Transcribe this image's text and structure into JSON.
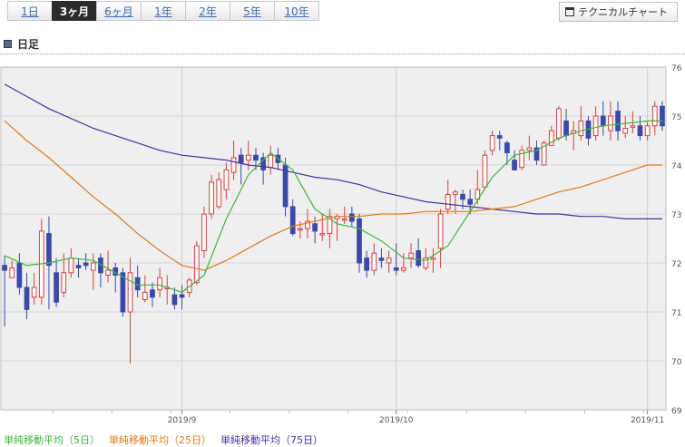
{
  "tabs": [
    {
      "label": "1日",
      "active": false
    },
    {
      "label": "3ヶ月",
      "active": true
    },
    {
      "label": "6ヶ月",
      "active": false
    },
    {
      "label": "1年",
      "active": false
    },
    {
      "label": "2年",
      "active": false
    },
    {
      "label": "5年",
      "active": false
    },
    {
      "label": "10年",
      "active": false
    }
  ],
  "tech_button": {
    "label": "テクニカルチャート",
    "icon": "window-icon"
  },
  "section": {
    "title": "日足",
    "icon": "square-icon"
  },
  "legend": [
    {
      "label": "単純移動平均（5日）",
      "color": "#3cb83c"
    },
    {
      "label": "単純移動平均（25日）",
      "color": "#e07a1c"
    },
    {
      "label": "単純移動平均（75日）",
      "color": "#4a2e9e"
    }
  ],
  "chart_data": {
    "type": "candlestick",
    "ylim": [
      69,
      76
    ],
    "yticks": [
      69,
      70,
      71,
      72,
      73,
      74,
      75,
      76
    ],
    "xticks": [
      {
        "index": 24,
        "label": "2019/9"
      },
      {
        "index": 53,
        "label": "2019/10"
      },
      {
        "index": 87,
        "label": "2019/11"
      }
    ],
    "up_color": "#d84040",
    "down_color": "#3a4aa8",
    "grid": true,
    "candles": [
      [
        71.95,
        71.85,
        72.15,
        70.7
      ],
      [
        71.7,
        71.9,
        72.05,
        71.7
      ],
      [
        72.0,
        71.5,
        72.2,
        71.35
      ],
      [
        71.5,
        71.05,
        71.8,
        70.85
      ],
      [
        71.3,
        71.5,
        71.8,
        71.15
      ],
      [
        71.3,
        72.65,
        72.9,
        71.15
      ],
      [
        72.6,
        71.95,
        72.95,
        71.05
      ],
      [
        71.8,
        71.2,
        72.1,
        71.1
      ],
      [
        71.4,
        71.8,
        72.2,
        71.3
      ],
      [
        71.8,
        72.1,
        72.3,
        71.7
      ],
      [
        71.95,
        71.9,
        72.1,
        71.7
      ],
      [
        72.0,
        71.95,
        72.2,
        71.85
      ],
      [
        71.85,
        72.0,
        72.2,
        71.45
      ],
      [
        72.1,
        71.8,
        72.2,
        71.5
      ],
      [
        71.75,
        71.85,
        72.25,
        71.6
      ],
      [
        71.9,
        71.75,
        72.0,
        71.4
      ],
      [
        71.8,
        71.0,
        71.9,
        70.9
      ],
      [
        71.0,
        71.8,
        72.1,
        69.95
      ],
      [
        71.7,
        71.45,
        71.95,
        71.3
      ],
      [
        71.25,
        71.4,
        71.75,
        71.2
      ],
      [
        71.45,
        71.3,
        71.6,
        71.1
      ],
      [
        71.45,
        71.7,
        71.9,
        71.3
      ],
      [
        71.5,
        71.5,
        71.75,
        71.15
      ],
      [
        71.35,
        71.15,
        71.5,
        71.05
      ],
      [
        71.35,
        71.3,
        71.55,
        71.05
      ],
      [
        71.4,
        71.65,
        71.7,
        71.3
      ],
      [
        71.6,
        72.35,
        72.45,
        71.55
      ],
      [
        72.25,
        73.0,
        73.15,
        72.1
      ],
      [
        73.0,
        73.65,
        73.8,
        72.9
      ],
      [
        73.15,
        73.7,
        73.85,
        73.1
      ],
      [
        73.5,
        73.9,
        74.05,
        73.3
      ],
      [
        73.85,
        74.15,
        74.5,
        73.7
      ],
      [
        74.2,
        74.05,
        74.35,
        73.6
      ],
      [
        74.1,
        74.2,
        74.5,
        73.9
      ],
      [
        74.2,
        74.1,
        74.35,
        73.9
      ],
      [
        74.15,
        73.9,
        74.25,
        73.6
      ],
      [
        73.95,
        74.2,
        74.4,
        73.8
      ],
      [
        74.2,
        74.05,
        74.35,
        73.9
      ],
      [
        74.0,
        73.15,
        74.15,
        72.95
      ],
      [
        73.15,
        72.6,
        73.3,
        72.55
      ],
      [
        72.7,
        72.7,
        72.85,
        72.5
      ],
      [
        72.7,
        72.85,
        73.1,
        72.5
      ],
      [
        72.8,
        72.65,
        72.95,
        72.4
      ],
      [
        72.6,
        72.6,
        73.0,
        72.45
      ],
      [
        72.6,
        72.95,
        73.1,
        72.3
      ],
      [
        72.9,
        72.95,
        73.0,
        72.45
      ],
      [
        72.9,
        72.9,
        73.15,
        72.8
      ],
      [
        73.0,
        72.85,
        73.15,
        72.75
      ],
      [
        72.9,
        72.0,
        73.0,
        71.8
      ],
      [
        72.1,
        71.85,
        72.25,
        71.7
      ],
      [
        71.85,
        72.2,
        72.4,
        71.75
      ],
      [
        72.1,
        72.05,
        72.3,
        71.9
      ],
      [
        72.0,
        72.1,
        72.25,
        71.8
      ],
      [
        71.9,
        71.85,
        72.4,
        71.75
      ],
      [
        71.85,
        71.9,
        72.2,
        71.8
      ],
      [
        72.1,
        72.2,
        72.4,
        71.9
      ],
      [
        72.25,
        71.95,
        72.5,
        71.9
      ],
      [
        71.9,
        72.1,
        72.3,
        71.85
      ],
      [
        72.1,
        72.1,
        72.3,
        71.8
      ],
      [
        72.3,
        73.0,
        73.1,
        71.9
      ],
      [
        73.1,
        73.4,
        73.7,
        73.0
      ],
      [
        73.4,
        73.45,
        73.5,
        73.0
      ],
      [
        73.4,
        73.3,
        73.5,
        73.1
      ],
      [
        73.3,
        73.2,
        73.5,
        73.0
      ],
      [
        73.3,
        73.5,
        73.9,
        73.2
      ],
      [
        73.55,
        74.2,
        74.3,
        73.5
      ],
      [
        74.3,
        74.6,
        74.7,
        74.2
      ],
      [
        74.6,
        74.55,
        74.7,
        74.3
      ],
      [
        74.45,
        74.25,
        74.5,
        74.0
      ],
      [
        74.1,
        73.9,
        74.3,
        73.9
      ],
      [
        73.95,
        74.3,
        74.4,
        73.9
      ],
      [
        74.3,
        74.35,
        74.6,
        74.1
      ],
      [
        74.35,
        74.1,
        74.5,
        74.0
      ],
      [
        74.0,
        74.45,
        74.5,
        74.0
      ],
      [
        74.4,
        74.7,
        74.8,
        74.4
      ],
      [
        74.55,
        75.15,
        75.2,
        74.5
      ],
      [
        74.9,
        74.6,
        75.15,
        74.5
      ],
      [
        74.65,
        74.7,
        74.9,
        74.3
      ],
      [
        74.6,
        74.9,
        75.2,
        74.5
      ],
      [
        74.9,
        74.55,
        75.0,
        74.4
      ],
      [
        74.6,
        75.0,
        75.2,
        74.5
      ],
      [
        75.0,
        74.8,
        75.3,
        74.6
      ],
      [
        74.7,
        75.0,
        75.3,
        74.5
      ],
      [
        75.1,
        74.7,
        75.3,
        74.5
      ],
      [
        74.65,
        74.75,
        75.0,
        74.55
      ],
      [
        74.8,
        74.8,
        75.1,
        74.65
      ],
      [
        74.8,
        74.6,
        75.0,
        74.5
      ],
      [
        74.6,
        74.8,
        74.9,
        74.5
      ],
      [
        74.8,
        75.2,
        75.3,
        74.6
      ],
      [
        75.2,
        74.8,
        75.3,
        74.7
      ]
    ],
    "ma5": [
      [
        0,
        72.15
      ],
      [
        3,
        71.95
      ],
      [
        6,
        72.0
      ],
      [
        9,
        72.1
      ],
      [
        12,
        72.05
      ],
      [
        15,
        71.8
      ],
      [
        18,
        71.55
      ],
      [
        21,
        71.55
      ],
      [
        24,
        71.4
      ],
      [
        27,
        71.75
      ],
      [
        30,
        72.9
      ],
      [
        33,
        73.8
      ],
      [
        36,
        74.25
      ],
      [
        39,
        73.9
      ],
      [
        42,
        73.1
      ],
      [
        45,
        72.8
      ],
      [
        48,
        72.7
      ],
      [
        51,
        72.45
      ],
      [
        54,
        72.1
      ],
      [
        57,
        72.05
      ],
      [
        60,
        72.35
      ],
      [
        63,
        73.05
      ],
      [
        66,
        73.75
      ],
      [
        69,
        74.2
      ],
      [
        72,
        74.3
      ],
      [
        75,
        74.55
      ],
      [
        78,
        74.7
      ],
      [
        81,
        74.8
      ],
      [
        84,
        74.85
      ],
      [
        87,
        74.9
      ],
      [
        89,
        74.9
      ]
    ],
    "ma25": [
      [
        0,
        74.9
      ],
      [
        3,
        74.5
      ],
      [
        6,
        74.15
      ],
      [
        9,
        73.75
      ],
      [
        12,
        73.35
      ],
      [
        15,
        73.0
      ],
      [
        18,
        72.6
      ],
      [
        21,
        72.25
      ],
      [
        24,
        71.95
      ],
      [
        27,
        71.85
      ],
      [
        30,
        72.05
      ],
      [
        33,
        72.3
      ],
      [
        36,
        72.55
      ],
      [
        39,
        72.75
      ],
      [
        42,
        72.85
      ],
      [
        45,
        72.95
      ],
      [
        48,
        72.95
      ],
      [
        51,
        73.0
      ],
      [
        54,
        73.0
      ],
      [
        57,
        73.05
      ],
      [
        60,
        73.05
      ],
      [
        63,
        73.05
      ],
      [
        66,
        73.1
      ],
      [
        69,
        73.15
      ],
      [
        72,
        73.3
      ],
      [
        75,
        73.45
      ],
      [
        78,
        73.55
      ],
      [
        81,
        73.7
      ],
      [
        84,
        73.85
      ],
      [
        87,
        74.0
      ],
      [
        89,
        74.0
      ]
    ],
    "ma75": [
      [
        0,
        75.65
      ],
      [
        3,
        75.4
      ],
      [
        6,
        75.15
      ],
      [
        9,
        74.95
      ],
      [
        12,
        74.75
      ],
      [
        15,
        74.6
      ],
      [
        18,
        74.45
      ],
      [
        21,
        74.3
      ],
      [
        24,
        74.2
      ],
      [
        27,
        74.15
      ],
      [
        30,
        74.1
      ],
      [
        33,
        74.0
      ],
      [
        36,
        73.95
      ],
      [
        39,
        73.85
      ],
      [
        42,
        73.75
      ],
      [
        45,
        73.7
      ],
      [
        48,
        73.6
      ],
      [
        51,
        73.45
      ],
      [
        54,
        73.35
      ],
      [
        57,
        73.25
      ],
      [
        60,
        73.2
      ],
      [
        63,
        73.15
      ],
      [
        66,
        73.1
      ],
      [
        69,
        73.05
      ],
      [
        72,
        73.0
      ],
      [
        75,
        73.0
      ],
      [
        78,
        72.95
      ],
      [
        81,
        72.95
      ],
      [
        84,
        72.9
      ],
      [
        87,
        72.9
      ],
      [
        89,
        72.9
      ]
    ]
  }
}
